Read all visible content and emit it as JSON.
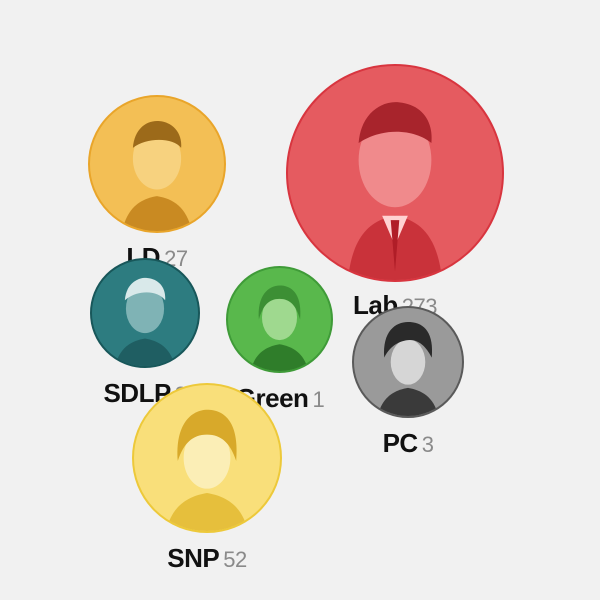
{
  "parties": [
    {
      "id": "lab",
      "name": "Lab",
      "seats": "273",
      "color": "#e55b60",
      "icon": "party-leader-portrait-icon"
    },
    {
      "id": "ld",
      "name": "LD",
      "seats": "27",
      "color": "#f3bf55",
      "icon": "party-leader-portrait-icon"
    },
    {
      "id": "sdlp",
      "name": "SDLP",
      "seats": "3",
      "color": "#2d7c80",
      "icon": "party-leader-portrait-icon"
    },
    {
      "id": "green",
      "name": "Green",
      "seats": "1",
      "color": "#59b84c",
      "icon": "party-leader-portrait-icon"
    },
    {
      "id": "pc",
      "name": "PC",
      "seats": "3",
      "color": "#9a9a9a",
      "icon": "party-leader-portrait-icon"
    },
    {
      "id": "snp",
      "name": "SNP",
      "seats": "52",
      "color": "#f9df7a",
      "icon": "party-leader-portrait-icon"
    }
  ]
}
